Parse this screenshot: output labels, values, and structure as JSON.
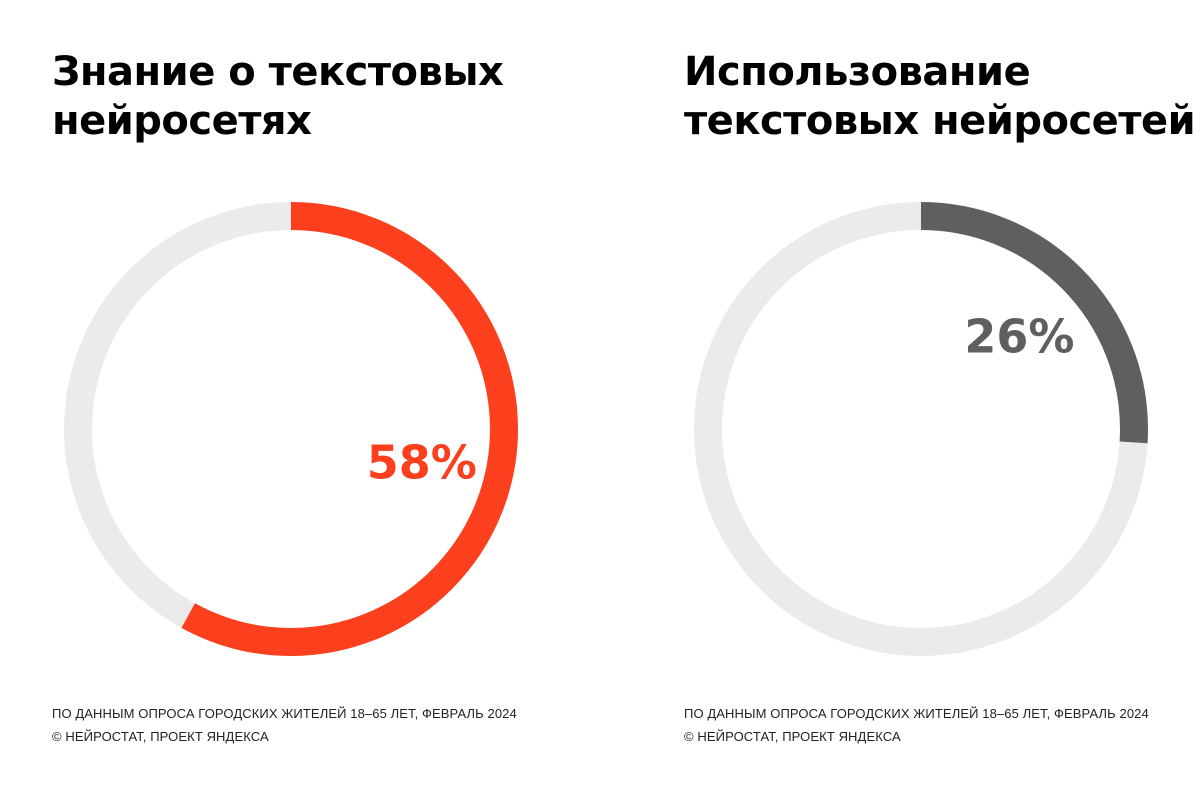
{
  "chart_data": [
    {
      "type": "pie",
      "variant": "donut",
      "title": "Знание о текстовых нейросетях",
      "title_lines": [
        "Знание о текстовых",
        "нейросетях"
      ],
      "value": 58,
      "value_label": "58%",
      "color": "#FC3F1D",
      "track_color": "#EBEBEB",
      "notes": [
        "ПО ДАННЫМ ОПРОСА ГОРОДСКИХ ЖИТЕЛЕЙ 18–65 ЛЕТ, ФЕВРАЛЬ 2024",
        "© НЕЙРОСТАТ, ПРОЕКТ ЯНДЕКСА"
      ]
    },
    {
      "type": "pie",
      "variant": "donut",
      "title": "Использование текстовых нейросетей",
      "title_lines": [
        "Использование",
        "текстовых нейросетей"
      ],
      "value": 26,
      "value_label": "26%",
      "color": "#5F5F5F",
      "track_color": "#EBEBEB",
      "notes": [
        "ПО ДАННЫМ ОПРОСА ГОРОДСКИХ ЖИТЕЛЕЙ 18–65 ЛЕТ, ФЕВРАЛЬ 2024",
        "© НЕЙРОСТАТ, ПРОЕКТ ЯНДЕКСА"
      ]
    }
  ]
}
